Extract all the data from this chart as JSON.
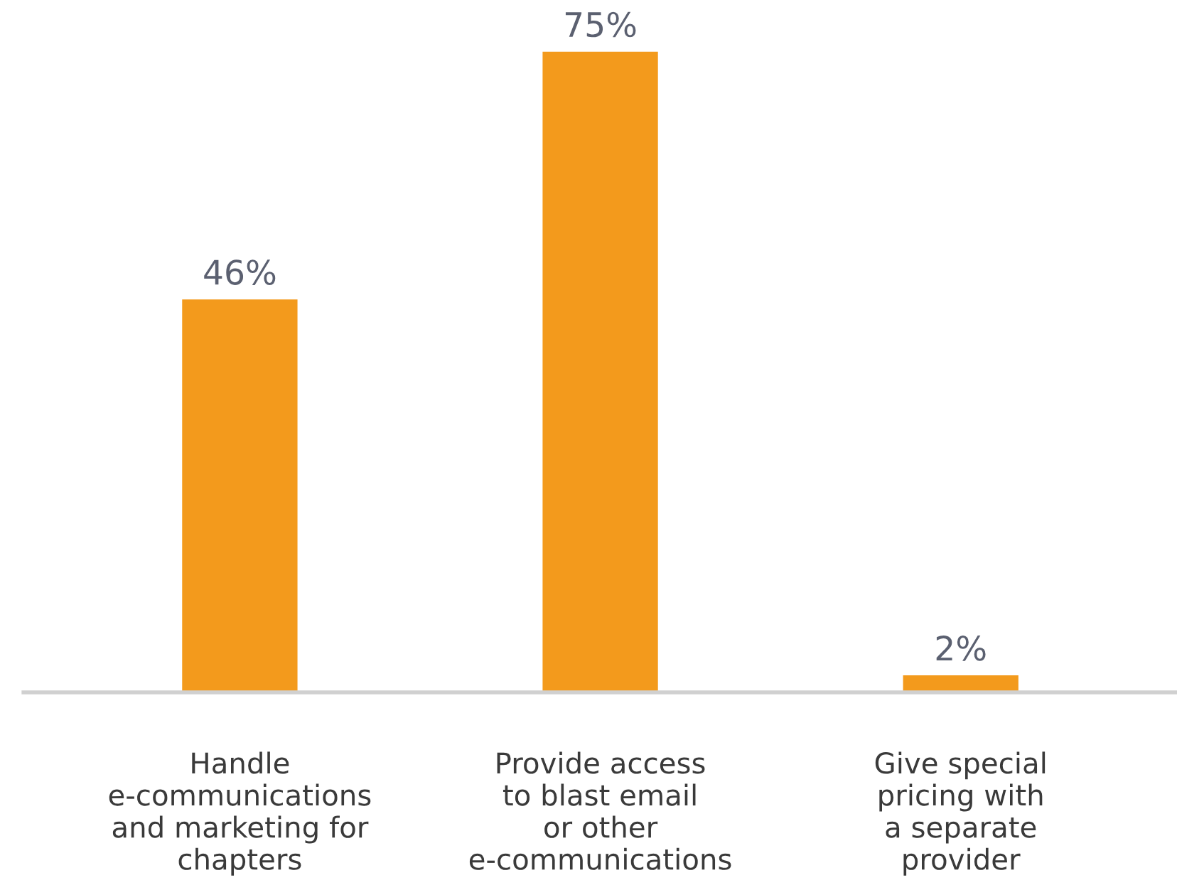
{
  "chart_data": {
    "type": "bar",
    "categories": [
      "Handle\ne-communications\nand marketing for\nchapters",
      "Provide access\nto blast email\nor other\ne-communications",
      "Give special\npricing with\na separate\nprovider"
    ],
    "values": [
      46,
      75,
      2
    ],
    "value_labels": [
      "46%",
      "75%",
      "2%"
    ],
    "color": "#f39a1c",
    "grid": false,
    "legend": false
  }
}
